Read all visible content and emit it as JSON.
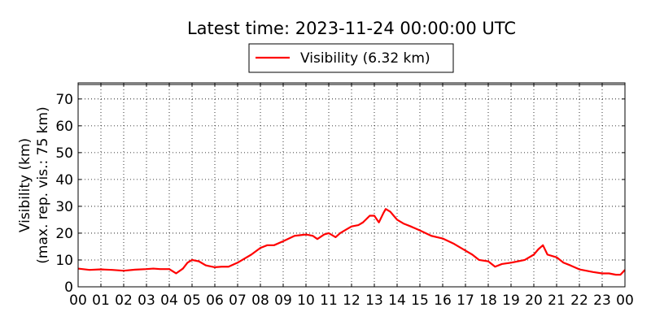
{
  "chart_data": {
    "type": "line",
    "title": "Latest time: 2023-11-24 00:00:00 UTC",
    "ylabel_lines": [
      "Visibility (km)",
      "(max. rep. vis.: 75 km)"
    ],
    "xlabel": "",
    "xlim": [
      0,
      24
    ],
    "ylim": [
      0,
      76
    ],
    "x_tick_labels": [
      "00",
      "01",
      "02",
      "03",
      "04",
      "05",
      "06",
      "07",
      "08",
      "09",
      "10",
      "11",
      "12",
      "13",
      "14",
      "15",
      "16",
      "17",
      "18",
      "19",
      "20",
      "21",
      "22",
      "23",
      "00"
    ],
    "y_ticks": [
      0,
      10,
      20,
      30,
      40,
      50,
      60,
      70
    ],
    "grid": true,
    "legend_position": "top-center",
    "series": [
      {
        "name": "Visibility (6.32 km)",
        "color": "#ff0000",
        "x": [
          0,
          0.5,
          1,
          1.5,
          2,
          2.5,
          3,
          3.3,
          3.6,
          4,
          4.3,
          4.6,
          4.8,
          5,
          5.3,
          5.6,
          6,
          6.3,
          6.6,
          7,
          7.3,
          7.6,
          8,
          8.3,
          8.6,
          9,
          9.5,
          10,
          10.3,
          10.5,
          10.8,
          11,
          11.3,
          11.5,
          11.8,
          12,
          12.3,
          12.5,
          12.8,
          13,
          13.2,
          13.4,
          13.5,
          13.7,
          13.9,
          14,
          14.3,
          14.6,
          15,
          15.5,
          16,
          16.5,
          17,
          17.3,
          17.6,
          18,
          18.3,
          18.6,
          19,
          19.3,
          19.6,
          20,
          20.2,
          20.4,
          20.6,
          21,
          21.3,
          21.6,
          22,
          22.3,
          22.6,
          23,
          23.3,
          23.6,
          23.8,
          24
        ],
        "values": [
          6.8,
          6.3,
          6.5,
          6.3,
          6.0,
          6.4,
          6.6,
          6.8,
          6.6,
          6.6,
          5.0,
          6.8,
          9.0,
          10.0,
          9.5,
          8.0,
          7.3,
          7.5,
          7.5,
          9.0,
          10.5,
          12.0,
          14.5,
          15.5,
          15.5,
          17.0,
          19.0,
          19.5,
          19.0,
          17.8,
          19.5,
          20.0,
          18.5,
          20.0,
          21.5,
          22.5,
          23.0,
          24.0,
          26.5,
          26.5,
          24.0,
          27.5,
          29.0,
          28.0,
          26.0,
          25.0,
          23.5,
          22.5,
          21.0,
          19.0,
          18.0,
          16.0,
          13.5,
          12.0,
          10.0,
          9.5,
          7.5,
          8.5,
          9.0,
          9.5,
          10.0,
          12.0,
          14.0,
          15.5,
          12.0,
          11.0,
          9.0,
          8.0,
          6.5,
          6.0,
          5.5,
          5.0,
          5.0,
          4.5,
          4.5,
          6.3
        ]
      }
    ]
  }
}
